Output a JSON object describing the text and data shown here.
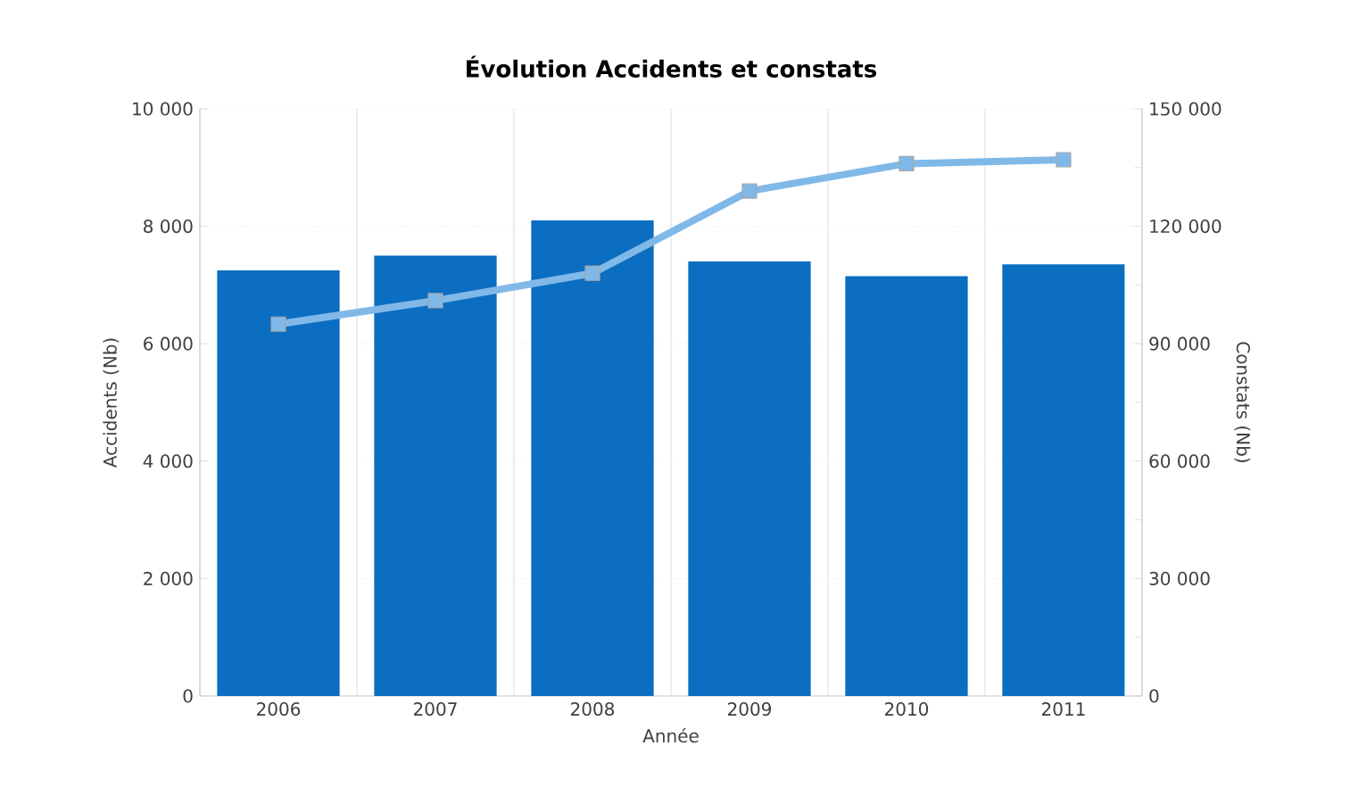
{
  "chart_data": {
    "type": "bar",
    "title": "Évolution Accidents et constats",
    "xlabel": "Année",
    "ylabel": "Accidents (Nb)",
    "y2label": "Constats (Nb)",
    "categories": [
      "2006",
      "2007",
      "2008",
      "2009",
      "2010",
      "2011"
    ],
    "series": [
      {
        "name": null,
        "color": "#0b6ec1",
        "values": [
          7250,
          7500,
          8100,
          7400,
          7150,
          7350
        ]
      },
      {
        "name": null,
        "type": "line",
        "axis": "y2",
        "color": "#80b9e8",
        "marker": "square",
        "values": [
          95000,
          101000,
          108000,
          129000,
          136000,
          137000
        ]
      }
    ],
    "ylim": [
      0,
      10000
    ],
    "yticks": [
      0,
      {
        "value": 2000,
        "label": "2 000"
      },
      {
        "value": 4000,
        "label": "4 000"
      },
      {
        "value": 6000,
        "label": "6 000"
      },
      {
        "value": 8000,
        "label": "8 000"
      },
      {
        "value": 10000,
        "label": "10 000"
      }
    ],
    "y2lim": [
      0,
      150000
    ],
    "y2ticks": [
      0,
      {
        "value": 15000,
        "label": null
      },
      {
        "value": 30000,
        "label": "30 000"
      },
      {
        "value": 45000,
        "label": null
      },
      {
        "value": 60000,
        "label": "60 000"
      },
      {
        "value": 75000,
        "label": null
      },
      {
        "value": 90000,
        "label": "90 000"
      },
      {
        "value": 105000,
        "label": null
      },
      {
        "value": 120000,
        "label": "120 000"
      },
      {
        "value": 135000,
        "label": null
      },
      {
        "value": 150000,
        "label": "150 000"
      }
    ],
    "grid": true
  }
}
